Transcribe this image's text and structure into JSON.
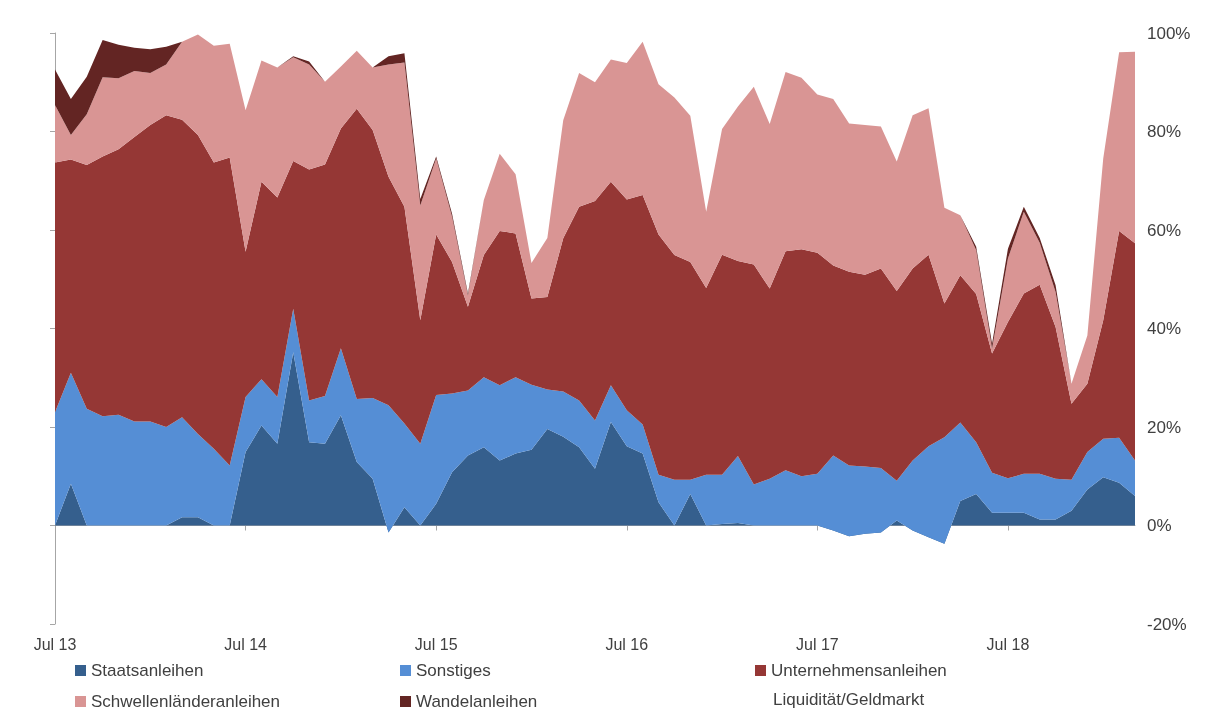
{
  "chart_data": {
    "type": "area",
    "stacked": true,
    "legend": "bottom",
    "annotations": [
      "Liquidität/Geldmarkt"
    ],
    "categories": [
      "Jul 13",
      null,
      null,
      null,
      null,
      null,
      null,
      null,
      null,
      null,
      null,
      null,
      "Jul 14",
      null,
      null,
      null,
      null,
      null,
      null,
      null,
      null,
      null,
      null,
      null,
      "Jul 15",
      null,
      null,
      null,
      null,
      null,
      null,
      null,
      null,
      null,
      null,
      null,
      "Jul 16",
      null,
      null,
      null,
      null,
      null,
      null,
      null,
      null,
      null,
      null,
      null,
      "Jul 17",
      null,
      null,
      null,
      null,
      null,
      null,
      null,
      null,
      null,
      null,
      null,
      "Jul 18",
      null,
      null,
      null,
      null,
      null,
      null,
      null,
      null
    ],
    "ylim": [
      -20,
      100
    ],
    "yticks": [
      {
        "value": -20,
        "label": "-20%"
      },
      {
        "value": 0,
        "label": "0%"
      },
      {
        "value": 20,
        "label": "20%"
      },
      {
        "value": 40,
        "label": "40%"
      },
      {
        "value": 60,
        "label": "60%"
      },
      {
        "value": 80,
        "label": "80%"
      },
      {
        "value": 100,
        "label": "100%"
      }
    ],
    "series": [
      {
        "name": "Staatsanleihen",
        "color": "#355f8d",
        "values": [
          0,
          8.5,
          0,
          0,
          0,
          0,
          0,
          0,
          1.7,
          1.7,
          0,
          0,
          14.9,
          20.3,
          16.6,
          35.2,
          16.9,
          16.6,
          22.4,
          12.9,
          9.5,
          -1.4,
          3.7,
          0,
          4.4,
          10.8,
          14.2,
          15.9,
          13.2,
          14.6,
          15.4,
          19.6,
          18.0,
          15.9,
          11.5,
          21.0,
          16.1,
          14.6,
          4.7,
          0,
          6.4,
          0,
          0.3,
          0.5,
          0,
          0,
          0,
          0,
          0,
          -1.0,
          -2.2,
          -1.7,
          -1.4,
          1.0,
          -1.0,
          -2.4,
          -3.7,
          5.0,
          6.4,
          2.6,
          2.6,
          2.6,
          1.2,
          1.2,
          3.0,
          7.3,
          9.8,
          8.7,
          6.0
        ]
      },
      {
        "name": "Sonstiges",
        "color": "#558ed5",
        "values": [
          23.0,
          22.5,
          23.7,
          22.2,
          22.5,
          21.1,
          21.1,
          20.0,
          20.3,
          16.9,
          15.6,
          12.2,
          11.2,
          9.4,
          9.5,
          8.8,
          8.5,
          9.7,
          13.6,
          12.8,
          16.4,
          25.8,
          17.0,
          16.6,
          22.1,
          16.0,
          13.2,
          14.2,
          15.3,
          15.5,
          13.2,
          8.0,
          9.2,
          9.5,
          9.8,
          7.5,
          7.3,
          5.9,
          5.6,
          9.3,
          2.9,
          10.3,
          10.0,
          13.6,
          8.3,
          9.5,
          11.2,
          10.0,
          10.5,
          15.2,
          14.4,
          13.7,
          13.1,
          8.1,
          14.2,
          18.5,
          21.6,
          15.9,
          10.5,
          8.1,
          7.0,
          7.9,
          9.3,
          8.3,
          6.3,
          7.6,
          7.8,
          9.1,
          7.2
        ]
      },
      {
        "name": "Unternehmensanleihen",
        "color": "#953735",
        "values": [
          50.7,
          43.3,
          49.5,
          52.7,
          53.9,
          57.8,
          60.2,
          63.3,
          60.4,
          60.7,
          58.1,
          62.5,
          29.5,
          40.1,
          40.5,
          30.0,
          46.9,
          47.0,
          44.6,
          58.9,
          54.4,
          46.4,
          44.0,
          25.1,
          32.6,
          26.7,
          17.0,
          24.8,
          31.3,
          29.2,
          17.5,
          18.8,
          31.1,
          39.3,
          44.6,
          41.3,
          42.8,
          46.6,
          48.8,
          45.6,
          44.2,
          37.9,
          44.7,
          39.6,
          44.7,
          38.6,
          44.5,
          46.1,
          44.9,
          38.6,
          39.3,
          38.9,
          40.5,
          38.5,
          39.0,
          38.9,
          27.2,
          29.9,
          30.1,
          24.2,
          31.7,
          36.6,
          38.4,
          30.8,
          15.4,
          13.9,
          24.1,
          42.0,
          44.1
        ]
      },
      {
        "name": "Schwellenländeranleihen",
        "color": "#d99594",
        "values": [
          11.7,
          5.0,
          10.3,
          16.1,
          14.4,
          13.4,
          10.6,
          10.3,
          15.8,
          20.4,
          23.7,
          23.1,
          28.7,
          24.6,
          26.4,
          21.1,
          21.3,
          16.8,
          12.6,
          11.8,
          12.7,
          22.8,
          29.3,
          23.3,
          15.4,
          9.2,
          2.3,
          11.2,
          15.7,
          12.0,
          7.2,
          12.0,
          24.0,
          27.2,
          24.1,
          24.8,
          27.7,
          31.1,
          30.5,
          32.0,
          29.7,
          15.5,
          25.5,
          31.4,
          36.1,
          33.4,
          36.4,
          34.8,
          32.1,
          33.8,
          30.1,
          30.4,
          28.8,
          26.3,
          31.1,
          29.7,
          19.4,
          12.2,
          8.9,
          1.0,
          12.9,
          16.6,
          8.5,
          7.1,
          4.1,
          9.8,
          32.8,
          36.3,
          38.9
        ]
      },
      {
        "name": "Wandelanleihen",
        "color": "#632523",
        "values": [
          7.2,
          7.3,
          7.6,
          7.6,
          6.8,
          4.7,
          4.8,
          3.6,
          0,
          0,
          0,
          0,
          0,
          0,
          0,
          0.2,
          0.6,
          0,
          0,
          0,
          0,
          1.7,
          1.9,
          1.3,
          0.4,
          0.6,
          0.4,
          0,
          0,
          0,
          0,
          0,
          0,
          0,
          0,
          0,
          0,
          0,
          0,
          0,
          0,
          0,
          0,
          0,
          0,
          0,
          0,
          0,
          0,
          0,
          0,
          0,
          0,
          0,
          0,
          0,
          0,
          0,
          0.7,
          1.0,
          2.0,
          1.0,
          1.0,
          1.4,
          0,
          0,
          0,
          0,
          0
        ]
      }
    ]
  }
}
